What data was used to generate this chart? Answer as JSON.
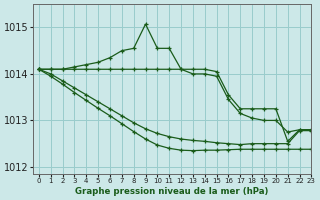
{
  "bg_color": "#cce8e8",
  "grid_color": "#99cccc",
  "line_color": "#1a5c1a",
  "title": "Graphe pression niveau de la mer (hPa)",
  "xlim": [
    -0.5,
    23
  ],
  "ylim": [
    1011.85,
    1015.5
  ],
  "yticks": [
    1012,
    1013,
    1014,
    1015
  ],
  "xticks": [
    0,
    1,
    2,
    3,
    4,
    5,
    6,
    7,
    8,
    9,
    10,
    11,
    12,
    13,
    14,
    15,
    16,
    17,
    18,
    19,
    20,
    21,
    22,
    23
  ],
  "series": [
    [
      1014.1,
      1014.1,
      1014.1,
      1014.15,
      1014.2,
      1014.25,
      1014.35,
      1014.5,
      1014.55,
      1015.07,
      1014.55,
      1014.55,
      1014.1,
      1014.1,
      1014.1,
      1014.05,
      1013.55,
      1013.25,
      1013.25,
      1013.25,
      1013.25,
      1012.55,
      1012.8,
      1012.8
    ],
    [
      1014.1,
      1014.1,
      1014.1,
      1014.1,
      1014.1,
      1014.1,
      1014.1,
      1014.1,
      1014.1,
      1014.1,
      1014.1,
      1014.1,
      1014.1,
      1014.0,
      1014.0,
      1013.95,
      1013.45,
      1013.15,
      1013.05,
      1013.0,
      1013.0,
      1012.75,
      1012.8,
      1012.8
    ],
    [
      1014.1,
      1014.0,
      1013.85,
      1013.7,
      1013.55,
      1013.4,
      1013.25,
      1013.1,
      1012.95,
      1012.82,
      1012.72,
      1012.65,
      1012.6,
      1012.57,
      1012.55,
      1012.52,
      1012.5,
      1012.48,
      1012.5,
      1012.5,
      1012.5,
      1012.5,
      1012.78,
      1012.78
    ],
    [
      1014.1,
      1013.95,
      1013.78,
      1013.6,
      1013.43,
      1013.26,
      1013.1,
      1012.93,
      1012.76,
      1012.6,
      1012.47,
      1012.4,
      1012.36,
      1012.35,
      1012.36,
      1012.36,
      1012.37,
      1012.38,
      1012.38,
      1012.38,
      1012.38,
      1012.38,
      1012.38,
      1012.38
    ]
  ]
}
